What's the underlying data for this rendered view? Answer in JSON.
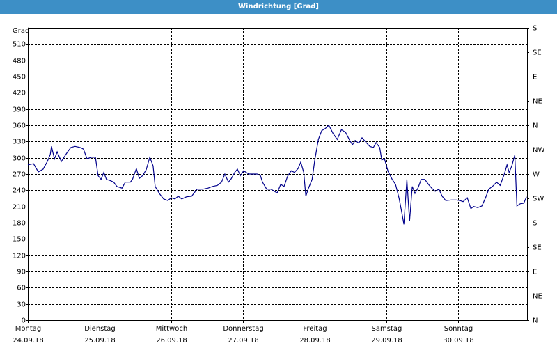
{
  "chart_data": {
    "type": "line",
    "title": "Windrichtung [Grad]",
    "y_label": "Grad",
    "xlim": [
      0,
      167
    ],
    "ylim": [
      0,
      540
    ],
    "y2lim": [
      0,
      540
    ],
    "xticks": [
      {
        "value": 0,
        "label": "Montag",
        "date": "24.09.18"
      },
      {
        "value": 24,
        "label": "Dienstag",
        "date": "25.09.18"
      },
      {
        "value": 48,
        "label": "Mittwoch",
        "date": "26.09.18"
      },
      {
        "value": 72,
        "label": "Donnerstag",
        "date": "27.09.18"
      },
      {
        "value": 96,
        "label": "Freitag",
        "date": "28.09.18"
      },
      {
        "value": 120,
        "label": "Samstag",
        "date": "29.09.18"
      },
      {
        "value": 144,
        "label": "Sonntag",
        "date": "30.09.18"
      }
    ],
    "yticks": [
      0,
      30,
      60,
      90,
      120,
      150,
      180,
      210,
      240,
      270,
      300,
      330,
      360,
      390,
      420,
      450,
      480,
      510
    ],
    "y2ticks": [
      {
        "value": 0,
        "label": "N"
      },
      {
        "value": 45,
        "label": "NE"
      },
      {
        "value": 90,
        "label": "E"
      },
      {
        "value": 135,
        "label": "SE"
      },
      {
        "value": 180,
        "label": "S"
      },
      {
        "value": 225,
        "label": "SW"
      },
      {
        "value": 270,
        "label": "W"
      },
      {
        "value": 315,
        "label": "NW"
      },
      {
        "value": 360,
        "label": "N"
      },
      {
        "value": 405,
        "label": "NE"
      },
      {
        "value": 450,
        "label": "E"
      },
      {
        "value": 495,
        "label": "SE"
      },
      {
        "value": 540,
        "label": "S"
      }
    ],
    "grid": true,
    "series": [
      {
        "color": "#00008b",
        "x": [
          0,
          1.9,
          3.5,
          5.1,
          6.5,
          7.5,
          7.9,
          8.9,
          9.8,
          11.2,
          12.1,
          13.3,
          14.4,
          15.8,
          17.5,
          18.6,
          19.8,
          21.2,
          22.6,
          23.5,
          24.5,
          25.4,
          26.3,
          27.5,
          28.7,
          29.8,
          31.5,
          32.6,
          34.3,
          35.0,
          36.3,
          37.3,
          38.4,
          39.6,
          40.8,
          41.9,
          42.6,
          44.0,
          45.4,
          46.8,
          48.0,
          49.2,
          50.3,
          51.5,
          53.1,
          54.8,
          56.6,
          58.5,
          60.3,
          61.7,
          63.4,
          64.8,
          65.9,
          67.1,
          68.0,
          69.2,
          70.1,
          71.1,
          72.2,
          73.9,
          75.3,
          76.7,
          77.8,
          78.5,
          79.9,
          81.3,
          82.5,
          83.4,
          84.6,
          85.7,
          86.9,
          88.1,
          89.2,
          90.4,
          91.3,
          92.3,
          93.0,
          93.9,
          95.1,
          96.0,
          97.2,
          98.3,
          99.5,
          100.7,
          102.1,
          103.5,
          104.9,
          106.3,
          107.7,
          108.6,
          109.5,
          110.7,
          111.8,
          113.2,
          114.4,
          115.6,
          116.5,
          117.7,
          118.4,
          119.3,
          120.5,
          121.9,
          123.0,
          124.2,
          125.1,
          125.8,
          126.8,
          127.7,
          128.6,
          129.5,
          130.5,
          131.6,
          132.8,
          134.0,
          135.1,
          136.3,
          137.5,
          138.6,
          139.8,
          141.7,
          143.3,
          144.5,
          145.6,
          147.0,
          148.2,
          149.1,
          150.5,
          151.9,
          153.1,
          154.2,
          155.6,
          156.8,
          158.0,
          159.4,
          160.3,
          161.0,
          161.9,
          162.9,
          163.6,
          164.7,
          165.9,
          166.8
        ],
        "values": [
          287,
          289,
          274,
          279,
          293,
          306,
          321,
          298,
          311,
          293,
          301,
          311,
          319,
          321,
          319,
          316,
          298,
          301,
          301,
          267,
          260,
          273,
          260,
          258,
          255,
          247,
          244,
          255,
          255,
          260,
          280,
          262,
          267,
          278,
          301,
          285,
          247,
          234,
          224,
          221,
          226,
          224,
          229,
          224,
          228,
          229,
          242,
          242,
          244,
          247,
          249,
          255,
          270,
          255,
          261,
          273,
          279,
          267,
          276,
          270,
          270,
          270,
          267,
          255,
          242,
          242,
          238,
          235,
          251,
          247,
          266,
          276,
          273,
          280,
          292,
          273,
          229,
          244,
          260,
          296,
          334,
          350,
          354,
          360,
          345,
          334,
          352,
          347,
          332,
          324,
          332,
          327,
          337,
          328,
          321,
          319,
          328,
          319,
          296,
          298,
          275,
          260,
          251,
          225,
          199,
          177,
          260,
          183,
          247,
          234,
          244,
          260,
          260,
          251,
          244,
          238,
          242,
          229,
          221,
          222,
          222,
          221,
          219,
          226,
          206,
          210,
          208,
          211,
          226,
          242,
          248,
          255,
          249,
          270,
          287,
          273,
          285,
          305,
          211,
          215,
          216,
          228
        ]
      }
    ]
  }
}
